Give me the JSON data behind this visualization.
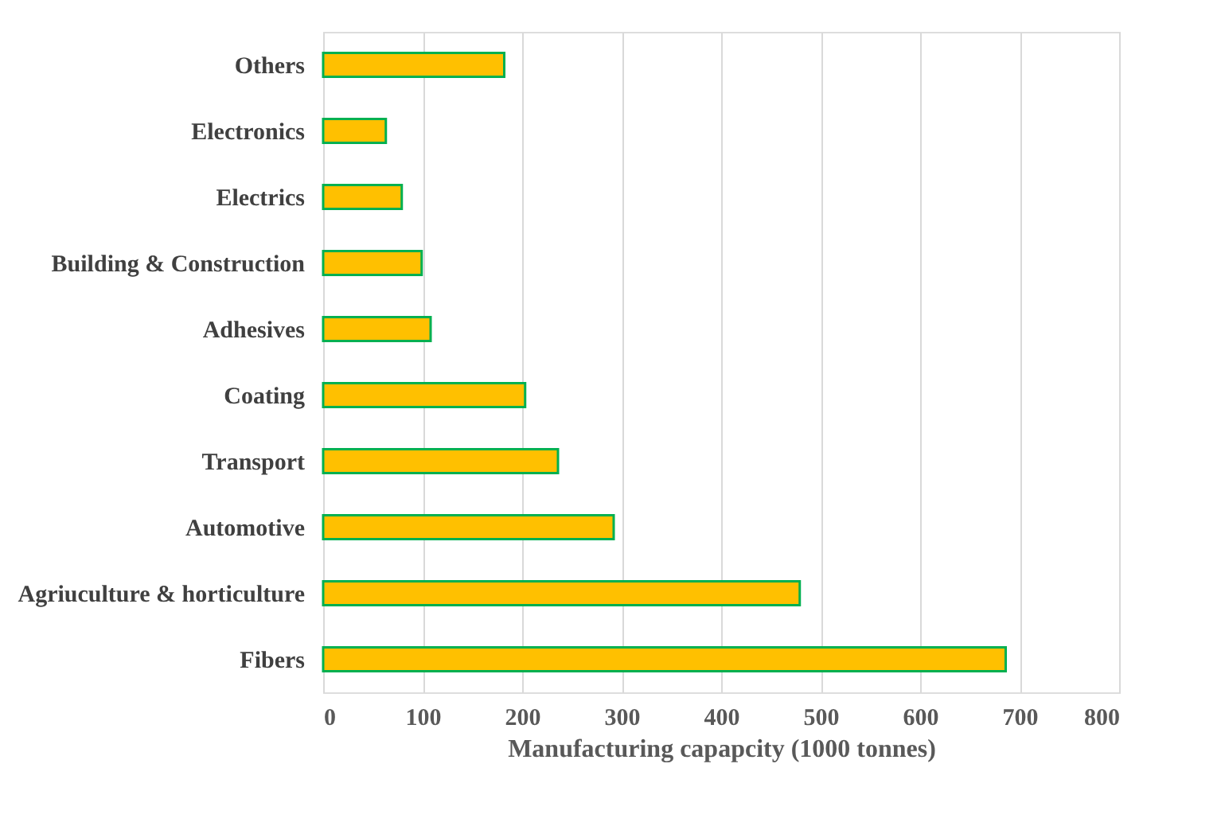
{
  "chart_data": {
    "type": "bar",
    "orientation": "horizontal",
    "xlabel": "Manufacturing capapcity (1000 tonnes)",
    "categories": [
      "Others",
      "Electronics",
      "Electrics",
      "Building & Construction",
      "Adhesives",
      "Coating",
      "Transport",
      "Automotive",
      "Agriuculture & horticulture",
      "Fibers"
    ],
    "values": [
      182,
      63,
      79,
      99,
      108,
      203,
      236,
      292,
      479,
      686
    ],
    "color": "#ffc000",
    "xlim": [
      0,
      800
    ],
    "xticks": [
      0,
      100,
      200,
      300,
      400,
      500,
      600,
      700,
      800
    ],
    "grid": "x"
  }
}
